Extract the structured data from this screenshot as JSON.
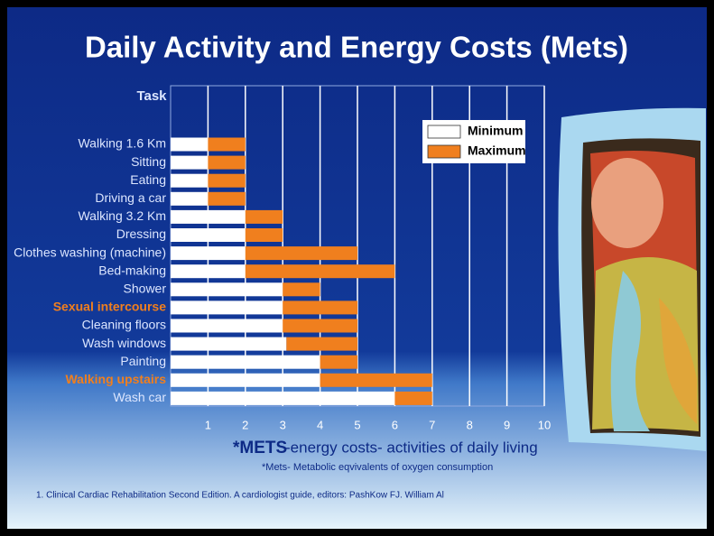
{
  "chart_data": {
    "type": "range-bar",
    "title": "Daily Activity and Energy Costs (Mets)",
    "category_label": "Task",
    "categories": [
      "Walking 1.6 Km",
      "Sitting",
      "Eating",
      "Driving a car",
      "Walking 3.2 Km",
      "Dressing",
      "Clothes washing (machine)",
      "Bed-making",
      "Shower",
      "Sexual intercourse",
      "Cleaning floors",
      "Wash windows",
      "Painting",
      "Walking upstairs",
      "Wash car"
    ],
    "highlighted_categories": [
      9,
      13
    ],
    "highlight_color": "#f07f1e",
    "series": [
      {
        "name": "Minimum",
        "color": "#ffffff",
        "values": [
          1,
          1,
          1,
          1,
          2,
          2,
          2,
          2,
          3,
          3,
          3,
          3.1,
          4,
          4,
          6
        ]
      },
      {
        "name": "Maximum",
        "color": "#f07f1e",
        "values": [
          2,
          2,
          2,
          2,
          3,
          3,
          5,
          6,
          4,
          5,
          5,
          5,
          5,
          7,
          7
        ]
      }
    ],
    "xlim": [
      0,
      10
    ],
    "xticks": [
      1,
      2,
      3,
      4,
      5,
      6,
      7,
      8,
      9,
      10
    ],
    "grid": true,
    "legend": "top-right",
    "xlabel_prefix": "*METS",
    "xlabel": "-energy costs- activities of daily living",
    "note": "*Mets- Metabolic eqvivalents of oxygen consumption",
    "source": "1. Clinical Cardiac Rehabilitation Second Edition. A cardiologist guide, editors: PashKow FJ. William Al"
  }
}
